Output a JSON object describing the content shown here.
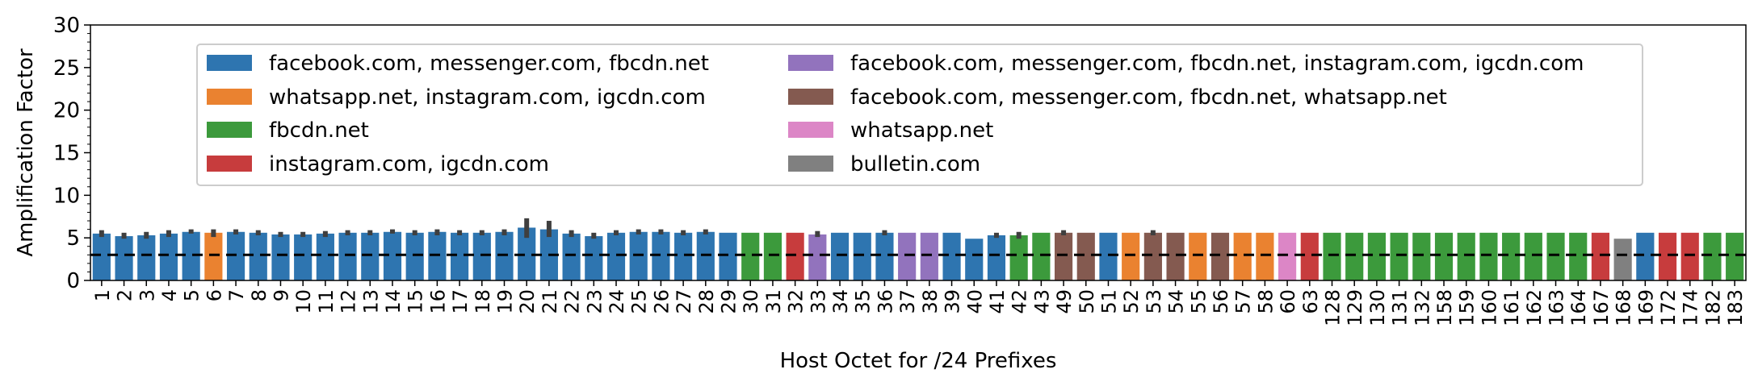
{
  "chart_data": {
    "type": "bar",
    "xlabel": "Host Octet for /24 Prefixes",
    "ylabel": "Amplification Factor",
    "ylim": [
      0,
      30
    ],
    "yticks": [
      0,
      5,
      10,
      15,
      20,
      25,
      30
    ],
    "reference_line": 3,
    "legend_position": "top-center",
    "groups": [
      {
        "name": "facebook.com, messenger.com, fbcdn.net",
        "color": "#2e75b0"
      },
      {
        "name": "whatsapp.net, instagram.com, igcdn.com",
        "color": "#ea8230"
      },
      {
        "name": "fbcdn.net",
        "color": "#3c9a3c"
      },
      {
        "name": "instagram.com, igcdn.com",
        "color": "#c73c3d"
      },
      {
        "name": "facebook.com, messenger.com, fbcdn.net, instagram.com, igcdn.com",
        "color": "#9273bd"
      },
      {
        "name": "facebook.com, messenger.com, fbcdn.net, whatsapp.net",
        "color": "#845a50"
      },
      {
        "name": "whatsapp.net",
        "color": "#dc86c6"
      },
      {
        "name": "bulletin.com",
        "color": "#808080"
      }
    ],
    "categories": [
      "1",
      "2",
      "3",
      "4",
      "5",
      "6",
      "7",
      "8",
      "9",
      "10",
      "11",
      "12",
      "13",
      "14",
      "15",
      "16",
      "17",
      "18",
      "19",
      "20",
      "21",
      "22",
      "23",
      "24",
      "25",
      "26",
      "27",
      "28",
      "29",
      "30",
      "31",
      "32",
      "33",
      "34",
      "35",
      "36",
      "37",
      "38",
      "39",
      "40",
      "41",
      "42",
      "43",
      "49",
      "50",
      "51",
      "52",
      "53",
      "54",
      "55",
      "56",
      "57",
      "58",
      "60",
      "63",
      "128",
      "129",
      "130",
      "131",
      "132",
      "158",
      "159",
      "160",
      "161",
      "162",
      "163",
      "164",
      "167",
      "168",
      "169",
      "172",
      "174",
      "182",
      "183"
    ],
    "values": [
      5.5,
      5.2,
      5.3,
      5.5,
      5.7,
      5.6,
      5.7,
      5.6,
      5.4,
      5.4,
      5.5,
      5.6,
      5.6,
      5.7,
      5.6,
      5.7,
      5.6,
      5.6,
      5.7,
      6.2,
      6.0,
      5.5,
      5.2,
      5.6,
      5.7,
      5.7,
      5.6,
      5.7,
      5.6,
      5.6,
      5.6,
      5.6,
      5.4,
      5.6,
      5.6,
      5.6,
      5.6,
      5.6,
      5.6,
      4.9,
      5.3,
      5.3,
      5.6,
      5.6,
      5.6,
      5.6,
      5.6,
      5.6,
      5.6,
      5.6,
      5.6,
      5.6,
      5.6,
      5.6,
      5.6,
      5.6,
      5.6,
      5.6,
      5.6,
      5.6,
      5.6,
      5.6,
      5.6,
      5.6,
      5.6,
      5.6,
      5.6,
      5.6,
      4.9,
      5.6,
      5.6,
      5.6,
      5.6,
      5.6
    ],
    "error_low": [
      5.1,
      4.9,
      4.9,
      5.1,
      5.5,
      5.1,
      5.4,
      5.3,
      5.1,
      5.1,
      5.1,
      5.3,
      5.3,
      5.5,
      5.3,
      5.3,
      5.3,
      5.3,
      5.3,
      5.0,
      5.1,
      5.1,
      4.9,
      5.3,
      5.4,
      5.4,
      5.3,
      5.4,
      5.6,
      5.6,
      5.6,
      5.6,
      5.1,
      5.6,
      5.6,
      5.3,
      5.6,
      5.6,
      5.6,
      4.9,
      5.0,
      4.9,
      5.6,
      5.3,
      5.6,
      5.6,
      5.6,
      5.3,
      5.6,
      5.6,
      5.6,
      5.6,
      5.6,
      5.6,
      5.6,
      5.6,
      5.6,
      5.6,
      5.6,
      5.6,
      5.6,
      5.6,
      5.6,
      5.6,
      5.6,
      5.6,
      5.6,
      5.6,
      4.9,
      5.6,
      5.6,
      5.6,
      5.6,
      5.6
    ],
    "error_high": [
      5.9,
      5.6,
      5.7,
      5.9,
      6.0,
      6.0,
      6.0,
      5.9,
      5.7,
      5.7,
      5.8,
      5.9,
      5.9,
      6.0,
      5.9,
      6.0,
      5.9,
      5.9,
      6.0,
      7.3,
      7.0,
      5.9,
      5.6,
      5.9,
      6.0,
      6.0,
      5.9,
      6.0,
      5.6,
      5.6,
      5.6,
      5.6,
      5.8,
      5.6,
      5.6,
      5.9,
      5.6,
      5.6,
      5.6,
      4.9,
      5.6,
      5.7,
      5.6,
      5.9,
      5.6,
      5.6,
      5.6,
      5.9,
      5.6,
      5.6,
      5.6,
      5.6,
      5.6,
      5.6,
      5.6,
      5.6,
      5.6,
      5.6,
      5.6,
      5.6,
      5.6,
      5.6,
      5.6,
      5.6,
      5.6,
      5.6,
      5.6,
      5.6,
      4.9,
      5.6,
      5.6,
      5.6,
      5.6,
      5.6
    ],
    "group_index": [
      0,
      0,
      0,
      0,
      0,
      1,
      0,
      0,
      0,
      0,
      0,
      0,
      0,
      0,
      0,
      0,
      0,
      0,
      0,
      0,
      0,
      0,
      0,
      0,
      0,
      0,
      0,
      0,
      0,
      2,
      2,
      3,
      4,
      0,
      0,
      0,
      4,
      4,
      0,
      0,
      0,
      2,
      2,
      5,
      5,
      0,
      1,
      5,
      5,
      1,
      5,
      1,
      1,
      6,
      3,
      2,
      2,
      2,
      2,
      2,
      2,
      2,
      2,
      2,
      2,
      2,
      2,
      3,
      7,
      0,
      3,
      3,
      2,
      2
    ]
  }
}
